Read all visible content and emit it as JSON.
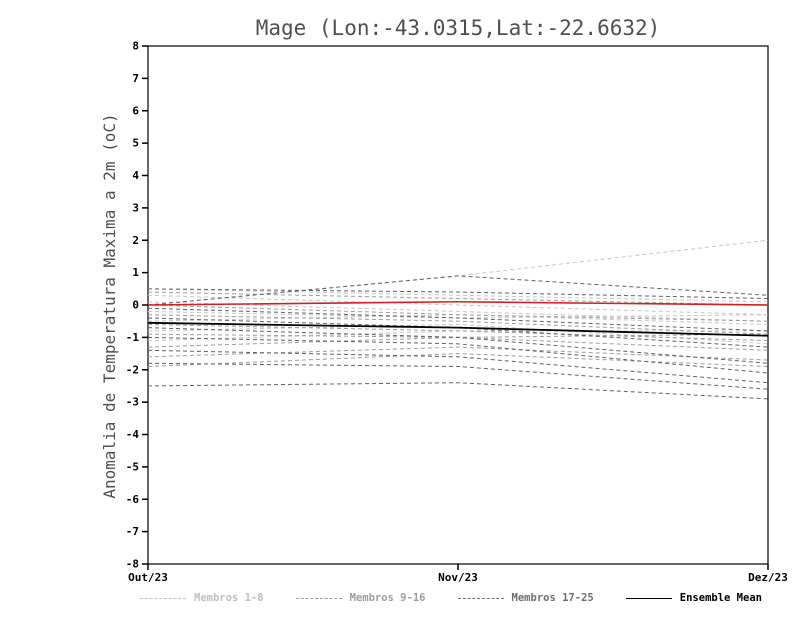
{
  "title": "Mage (Lon:-43.0315,Lat:-22.6632)",
  "chart_data": {
    "type": "line",
    "title": "Mage (Lon:-43.0315,Lat:-22.6632)",
    "xlabel": "",
    "ylabel": "Anomalia de Temperatura Maxima a 2m (oC)",
    "ylim": [
      -8,
      8
    ],
    "y_ticks": [
      -8,
      -7,
      -6,
      -5,
      -4,
      -3,
      -2,
      -1,
      0,
      1,
      2,
      3,
      4,
      5,
      6,
      7,
      8
    ],
    "x_categories": [
      "Out/23",
      "Nov/23",
      "Dez/23"
    ],
    "grid": false,
    "legend_position": "bottom",
    "groups": [
      {
        "name": "Membros 1-8",
        "color": "#c6c6c6",
        "style": "dashed",
        "members": [
          [
            0.0,
            0.9,
            2.0
          ],
          [
            0.5,
            0.3,
            0.1
          ],
          [
            0.3,
            0.0,
            -0.3
          ],
          [
            0.1,
            -0.2,
            -0.5
          ],
          [
            -0.2,
            -0.4,
            -0.3
          ],
          [
            -0.5,
            -0.3,
            -0.6
          ],
          [
            -0.8,
            -0.6,
            -1.2
          ],
          [
            -1.1,
            -0.8,
            -0.8
          ]
        ]
      },
      {
        "name": "Membros 9-16",
        "color": "#9c9c9c",
        "style": "dashed",
        "members": [
          [
            0.4,
            0.2,
            0.0
          ],
          [
            0.0,
            -0.3,
            -0.5
          ],
          [
            -0.3,
            -0.5,
            -0.9
          ],
          [
            -0.6,
            -0.8,
            -1.1
          ],
          [
            -0.9,
            -1.0,
            -1.4
          ],
          [
            -1.3,
            -1.0,
            -0.9
          ],
          [
            -1.6,
            -1.3,
            -1.7
          ],
          [
            -1.9,
            -1.5,
            -1.9
          ]
        ]
      },
      {
        "name": "Membros 17-25",
        "color": "#616161",
        "style": "dashed",
        "members": [
          [
            0.5,
            0.4,
            0.2
          ],
          [
            0.0,
            0.9,
            0.3
          ],
          [
            -0.1,
            -0.4,
            -0.8
          ],
          [
            -0.4,
            -0.7,
            -1.3
          ],
          [
            -0.7,
            -1.0,
            -1.8
          ],
          [
            -1.0,
            -1.2,
            -2.1
          ],
          [
            -1.4,
            -1.6,
            -2.4
          ],
          [
            -1.8,
            -1.9,
            -2.6
          ],
          [
            -2.5,
            -2.4,
            -2.9
          ]
        ]
      }
    ],
    "reference": {
      "name": "reference-line",
      "color": "#cc2222",
      "style": "solid",
      "values": [
        0.0,
        0.1,
        0.0
      ]
    },
    "mean": {
      "name": "Ensemble Mean",
      "color": "#000000",
      "style": "solid",
      "values": [
        -0.55,
        -0.7,
        -0.95
      ]
    },
    "legend": [
      {
        "label": "Membros 1-8",
        "color": "#c0c0c0",
        "style": "dashed"
      },
      {
        "label": "Membros 9-16",
        "color": "#9c9c9c",
        "style": "dashed"
      },
      {
        "label": "Membros 17-25",
        "color": "#6e6e6e",
        "style": "dashed"
      },
      {
        "label": "Ensemble Mean",
        "color": "#000000",
        "style": "solid"
      }
    ]
  }
}
